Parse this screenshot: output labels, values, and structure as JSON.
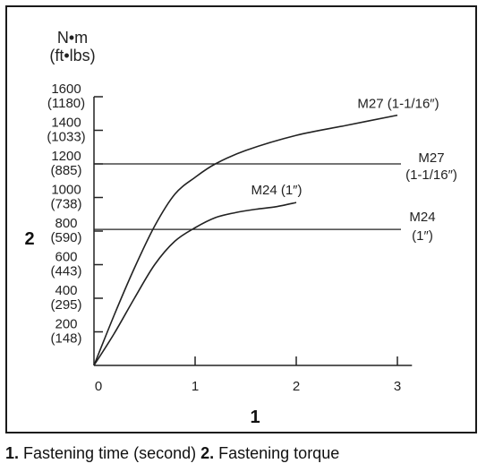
{
  "chart_data": {
    "type": "line",
    "xlabel": "1",
    "ylabel": "2",
    "y_unit_top": "N•m",
    "y_unit_bottom": "(ft•lbs)",
    "xlim": [
      0,
      3.1
    ],
    "ylim": [
      0,
      1600
    ],
    "x_ticks": [
      {
        "value": 0,
        "label": "0"
      },
      {
        "value": 1,
        "label": "1"
      },
      {
        "value": 2,
        "label": "2"
      },
      {
        "value": 3,
        "label": "3"
      }
    ],
    "y_ticks": [
      {
        "value": 200,
        "label": "200",
        "sub": "(148)"
      },
      {
        "value": 400,
        "label": "400",
        "sub": "(295)"
      },
      {
        "value": 600,
        "label": "600",
        "sub": "(443)"
      },
      {
        "value": 800,
        "label": "800",
        "sub": "(590)"
      },
      {
        "value": 1000,
        "label": "1000",
        "sub": "(738)"
      },
      {
        "value": 1200,
        "label": "1200",
        "sub": "(885)"
      },
      {
        "value": 1400,
        "label": "1400",
        "sub": "(1033)"
      },
      {
        "value": 1600,
        "label": "1600",
        "sub": "(1180)"
      }
    ],
    "series": [
      {
        "name": "M27 (1-1/16″)",
        "x": [
          0,
          0.2,
          0.4,
          0.6,
          0.8,
          1.0,
          1.2,
          1.5,
          2.0,
          2.5,
          3.0
        ],
        "y": [
          0,
          300,
          580,
          830,
          1020,
          1120,
          1200,
          1280,
          1370,
          1430,
          1490
        ]
      },
      {
        "name": "M24 (1″)",
        "x": [
          0,
          0.2,
          0.4,
          0.6,
          0.8,
          1.0,
          1.2,
          1.4,
          1.6,
          1.8,
          2.0
        ],
        "y": [
          0,
          190,
          400,
          600,
          740,
          820,
          880,
          910,
          930,
          945,
          970
        ]
      }
    ],
    "reference_lines": [
      {
        "value": 1200,
        "label_top": "M27",
        "label_bottom": "(1-1/16″)"
      },
      {
        "value": 810,
        "label_top": "M24",
        "label_bottom": "(1″)"
      }
    ]
  },
  "caption": {
    "n1": "1.",
    "t1": " Fastening time (second) ",
    "n2": "2.",
    "t2": " Fastening torque"
  }
}
